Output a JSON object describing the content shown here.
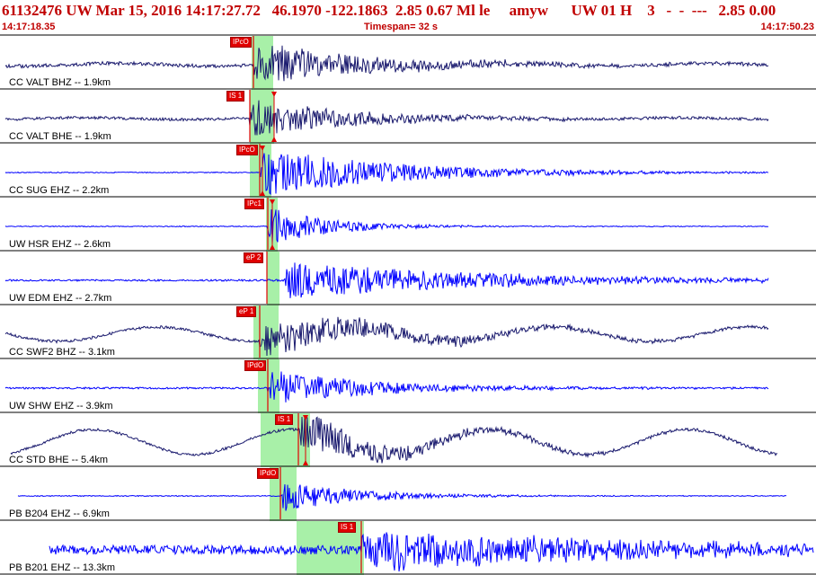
{
  "header": {
    "title": "61132476 UW Mar 15, 2016 14:17:27.72   46.1970 -122.1863  2.85 0.67 Ml le     amyw      UW 01 H    3   -  -  ---   2.85 0.00",
    "start_time": "14:17:18.35",
    "timespan": "Timespan=  32 s",
    "end_time": "14:17:50.23"
  },
  "colors": {
    "title": "#c00000",
    "highlight": "#a8f0a8",
    "pick": "#e00000",
    "trace_blue": "#0000ff",
    "trace_dark": "#1a1a6e"
  },
  "traces": [
    {
      "label": "CC VALT BHZ -- 1.9km",
      "pick_label": "IPcO",
      "color": "dark"
    },
    {
      "label": "CC VALT BHE -- 1.9km",
      "pick_label": "IS 1",
      "color": "dark"
    },
    {
      "label": "CC SUG EHZ -- 2.2km",
      "pick_label": "IPcO",
      "color": "blue"
    },
    {
      "label": "UW HSR EHZ -- 2.6km",
      "pick_label": "IPc1",
      "color": "blue"
    },
    {
      "label": "UW EDM EHZ -- 2.7km",
      "pick_label": "eP 2",
      "color": "blue"
    },
    {
      "label": "CC SWF2 BHZ -- 3.1km",
      "pick_label": "eP 1",
      "color": "dark"
    },
    {
      "label": "UW SHW EHZ -- 3.9km",
      "pick_label": "IPdO",
      "color": "blue"
    },
    {
      "label": "CC STD BHE -- 5.4km",
      "pick_label": "IS 1",
      "color": "dark"
    },
    {
      "label": "PB B204 EHZ -- 6.9km",
      "pick_label": "IPdO",
      "color": "blue"
    },
    {
      "label": "PB B201 EHZ -- 13.3km",
      "pick_label": "IS 1",
      "color": "blue"
    }
  ]
}
